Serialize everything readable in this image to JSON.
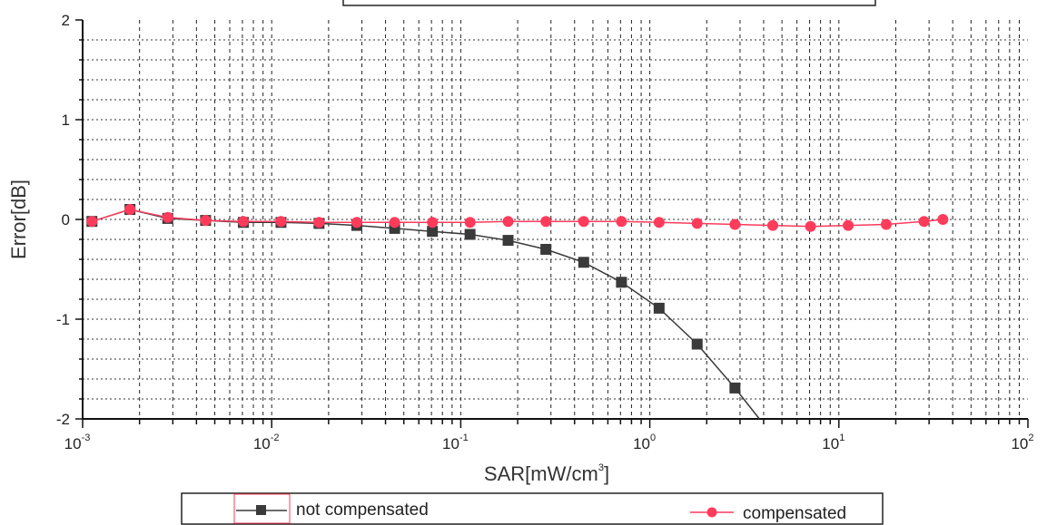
{
  "chart_data": {
    "type": "line",
    "xscale": "log",
    "xlim": [
      0.001,
      100
    ],
    "ylim": [
      -2,
      2
    ],
    "xlabel": {
      "base": "SAR[mW/cm",
      "sup": "3",
      "tail": "]"
    },
    "ylabel": "Error[dB]",
    "x_ticks": [
      {
        "base": "10",
        "exp": "-3",
        "value": 0.001
      },
      {
        "base": "10",
        "exp": "-2",
        "value": 0.01
      },
      {
        "base": "10",
        "exp": "-1",
        "value": 0.1
      },
      {
        "base": "10",
        "exp": "0",
        "value": 1
      },
      {
        "base": "10",
        "exp": "1",
        "value": 10
      },
      {
        "base": "10",
        "exp": "2",
        "value": 100
      }
    ],
    "y_ticks": [
      {
        "label": "2",
        "value": 2
      },
      {
        "label": "1",
        "value": 1
      },
      {
        "label": "0",
        "value": 0
      },
      {
        "label": "-1",
        "value": -1
      },
      {
        "label": "-2",
        "value": -2
      }
    ],
    "grid": true,
    "legend_position": "bottom",
    "series": [
      {
        "name": "not compensated",
        "color": "#3a3a3a",
        "marker": "square",
        "x": [
          0.00112,
          0.00178,
          0.00282,
          0.00447,
          0.00708,
          0.0112,
          0.0178,
          0.0282,
          0.0447,
          0.0708,
          0.112,
          0.178,
          0.282,
          0.447,
          0.708,
          1.12,
          1.78,
          2.82,
          3.8
        ],
        "y": [
          -0.02,
          0.1,
          0.01,
          -0.01,
          -0.03,
          -0.03,
          -0.04,
          -0.06,
          -0.09,
          -0.12,
          -0.15,
          -0.21,
          -0.3,
          -0.43,
          -0.63,
          -0.89,
          -1.25,
          -1.69,
          -2.0
        ]
      },
      {
        "name": "compensated",
        "color": "#ff3b5c",
        "marker": "circle",
        "x": [
          0.00112,
          0.00178,
          0.00282,
          0.00447,
          0.00708,
          0.0112,
          0.0178,
          0.0282,
          0.0447,
          0.0708,
          0.112,
          0.178,
          0.282,
          0.447,
          0.708,
          1.12,
          1.78,
          2.82,
          4.47,
          7.08,
          11.2,
          17.8,
          28.2,
          35.5
        ],
        "y": [
          -0.02,
          0.1,
          0.02,
          -0.01,
          -0.02,
          -0.02,
          -0.03,
          -0.03,
          -0.03,
          -0.03,
          -0.03,
          -0.02,
          -0.02,
          -0.02,
          -0.02,
          -0.03,
          -0.04,
          -0.05,
          -0.06,
          -0.07,
          -0.06,
          -0.05,
          -0.02,
          0.0
        ]
      }
    ]
  }
}
